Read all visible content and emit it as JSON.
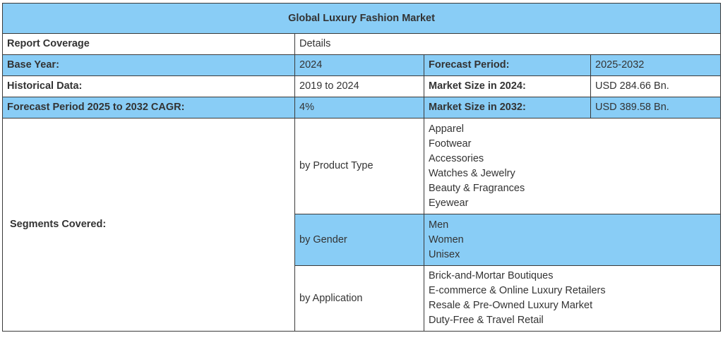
{
  "title": "Global Luxury Fashion Market",
  "colors": {
    "highlight": "#89cdf6",
    "border": "#3a3a3a"
  },
  "rows": {
    "coverage": {
      "label": "Report Coverage",
      "value": "Details"
    },
    "base_year": {
      "label": "Base Year:",
      "value": "2024",
      "label2": "Forecast Period:",
      "value2": "2025-2032"
    },
    "historical": {
      "label": "Historical Data:",
      "value": "2019 to 2024",
      "label2": "Market Size in 2024:",
      "value2": "USD 284.66 Bn."
    },
    "cagr": {
      "label": "Forecast Period 2025 to 2032 CAGR:",
      "value": "4%",
      "label2": "Market Size in 2032:",
      "value2": "USD 389.58 Bn."
    }
  },
  "segments": {
    "label": "Segments Covered:",
    "groups": [
      {
        "name": "by Product Type",
        "items": [
          "Apparel",
          "Footwear",
          "Accessories",
          "Watches & Jewelry",
          "Beauty & Fragrances",
          "Eyewear"
        ]
      },
      {
        "name": "by Gender",
        "items": [
          "Men",
          "Women",
          "Unisex"
        ]
      },
      {
        "name": "by Application",
        "items": [
          "Brick-and-Mortar Boutiques",
          "E-commerce & Online Luxury Retailers",
          "Resale & Pre-Owned Luxury Market",
          "Duty-Free & Travel Retail"
        ]
      }
    ]
  }
}
